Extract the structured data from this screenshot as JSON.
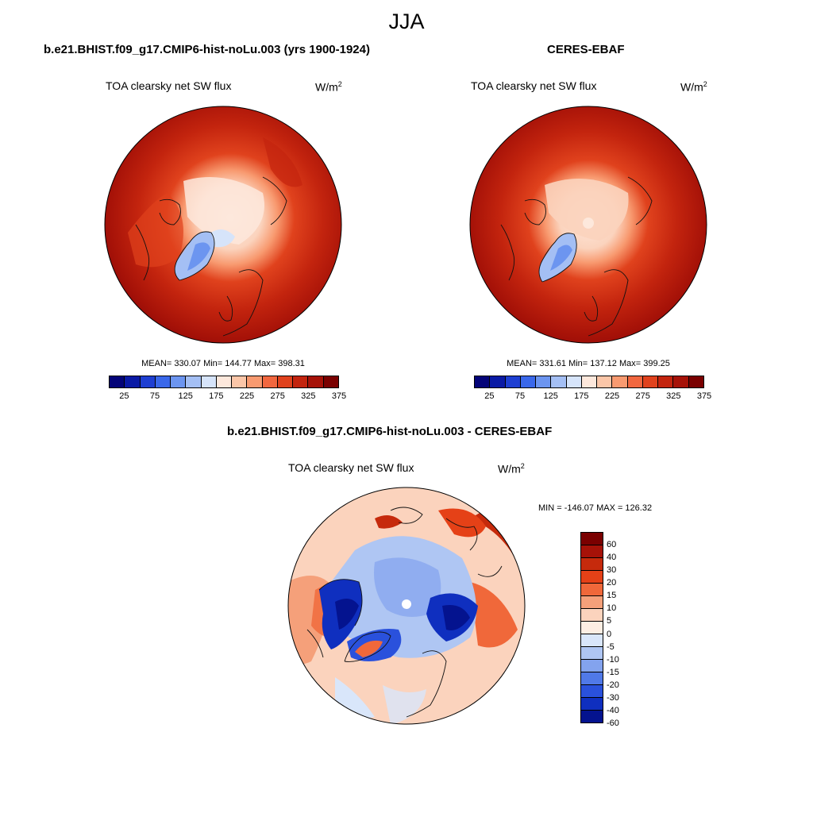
{
  "title": "JJA",
  "colors": {
    "abs_scale": [
      "#040478",
      "#0a1aa5",
      "#1e3fd2",
      "#3a68ea",
      "#6c95f0",
      "#a4bff4",
      "#d6e4fa",
      "#fde8dc",
      "#fbc6a8",
      "#f89a70",
      "#f1673f",
      "#e0421d",
      "#c3240e",
      "#a61208",
      "#7a0000"
    ],
    "diff_scale": [
      "#7a0000",
      "#a61208",
      "#c62a0c",
      "#e54117",
      "#f0683a",
      "#f5a07a",
      "#fbd3bd",
      "#fdeee3",
      "#d9e6fa",
      "#afc6f3",
      "#83a3ee",
      "#5079e8",
      "#2a51dc",
      "#0f2fbf",
      "#04138f"
    ]
  },
  "panels": {
    "model": {
      "title": "b.e21.BHIST.f09_g17.CMIP6-hist-noLu.003 (yrs 1900-1924)",
      "variable": "TOA clearsky net SW flux",
      "unit": "W/m",
      "unit_exp": "2",
      "stats": "MEAN= 330.07  Min= 144.77  Max= 398.31",
      "ticks": [
        "25",
        "75",
        "125",
        "175",
        "225",
        "275",
        "325",
        "375"
      ]
    },
    "obs": {
      "title": "CERES-EBAF",
      "variable": "TOA clearsky net SW flux",
      "unit": "W/m",
      "unit_exp": "2",
      "stats": "MEAN= 331.61  Min= 137.12  Max= 399.25",
      "ticks": [
        "25",
        "75",
        "125",
        "175",
        "225",
        "275",
        "325",
        "375"
      ]
    },
    "diff": {
      "title": "b.e21.BHIST.f09_g17.CMIP6-hist-noLu.003 - CERES-EBAF",
      "variable": "TOA clearsky net SW flux",
      "unit": "W/m",
      "unit_exp": "2",
      "stats": "MIN = -146.07 MAX = 126.32",
      "ticks": [
        "60",
        "40",
        "30",
        "20",
        "15",
        "10",
        "5",
        "0",
        "-5",
        "-10",
        "-15",
        "-20",
        "-30",
        "-40",
        "-60"
      ]
    }
  }
}
